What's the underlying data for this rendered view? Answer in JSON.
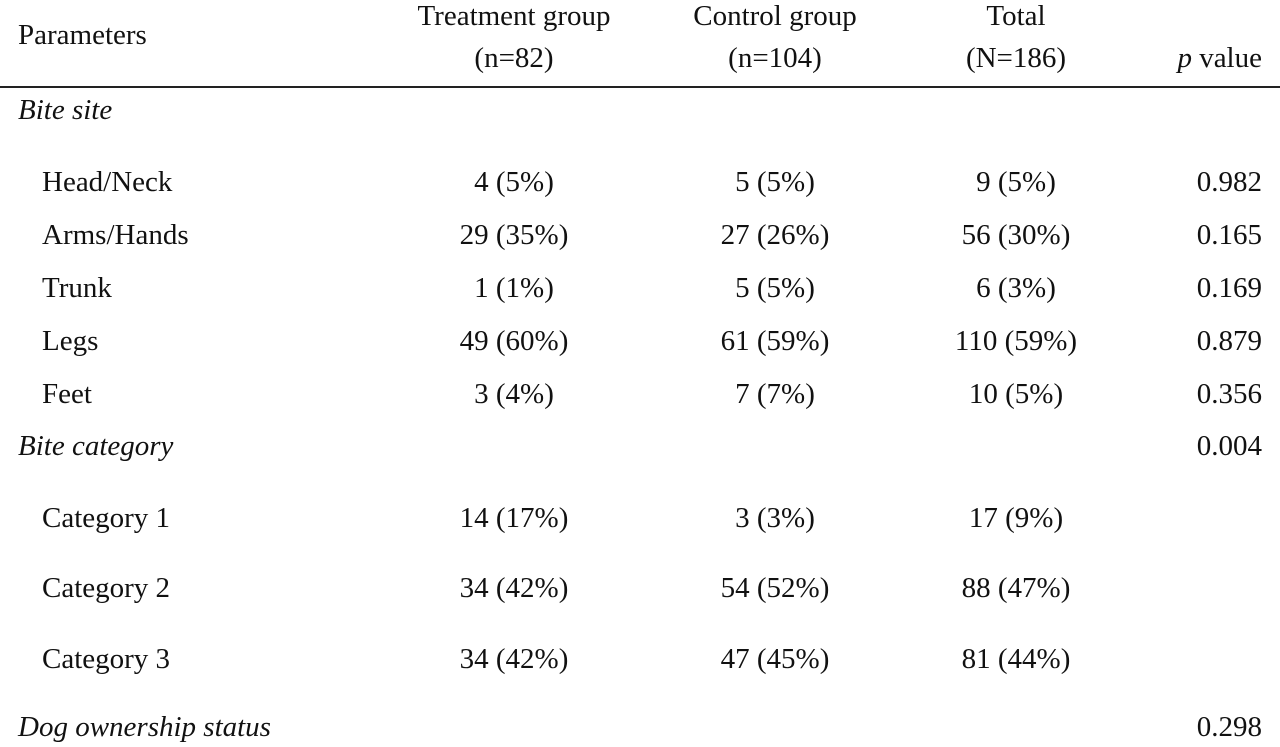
{
  "table": {
    "header": {
      "parameters": "Parameters",
      "treatment_line1": "Treatment group",
      "treatment_line2": "(n=82)",
      "control_line1": "Control group",
      "control_line2": "(n=104)",
      "total_line1": "Total",
      "total_line2": "(N=186)",
      "pvalue_p": "p",
      "pvalue_rest": " value"
    },
    "sections": {
      "bite_site": "Bite site",
      "bite_category": "Bite category",
      "bite_category_p": "0.004",
      "dog_ownership": "Dog ownership status",
      "dog_ownership_p": "0.298"
    },
    "rows": [
      {
        "label": "Head/Neck",
        "treatment": "4 (5%)",
        "control": "5 (5%)",
        "total": "9 (5%)",
        "p": "0.982"
      },
      {
        "label": "Arms/Hands",
        "treatment": "29 (35%)",
        "control": "27 (26%)",
        "total": "56 (30%)",
        "p": "0.165"
      },
      {
        "label": "Trunk",
        "treatment": "1 (1%)",
        "control": "5 (5%)",
        "total": "6 (3%)",
        "p": "0.169"
      },
      {
        "label": "Legs",
        "treatment": "49 (60%)",
        "control": "61 (59%)",
        "total": "110 (59%)",
        "p": "0.879"
      },
      {
        "label": "Feet",
        "treatment": "3 (4%)",
        "control": "7 (7%)",
        "total": "10 (5%)",
        "p": "0.356"
      },
      {
        "label": "Category 1",
        "treatment": "14 (17%)",
        "control": "3 (3%)",
        "total": "17 (9%)",
        "p": ""
      },
      {
        "label": "Category 2",
        "treatment": "34 (42%)",
        "control": "54 (52%)",
        "total": "88 (47%)",
        "p": ""
      },
      {
        "label": "Category 3",
        "treatment": "34 (42%)",
        "control": "47 (45%)",
        "total": "81 (44%)",
        "p": ""
      }
    ]
  }
}
